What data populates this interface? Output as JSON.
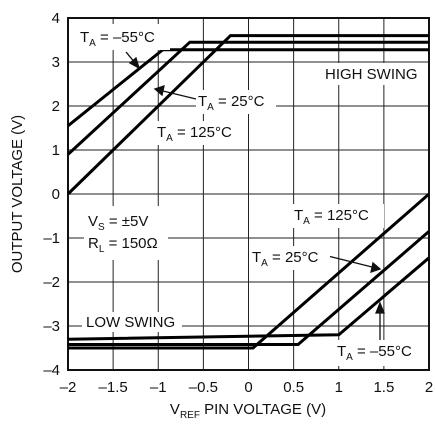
{
  "chart_data": {
    "type": "line",
    "xlabel_main": "V",
    "xlabel_sub": "REF",
    "xlabel_rest": " PIN VOLTAGE (V)",
    "ylabel": "OUTPUT VOLTAGE (V)",
    "xlim": [
      -2,
      2
    ],
    "ylim": [
      -4,
      4
    ],
    "grid": true,
    "x_ticks": [
      -2,
      -1.5,
      -1,
      -0.5,
      0,
      0.5,
      1,
      1.5,
      2
    ],
    "x_tick_labels": [
      "–2",
      "–1.5",
      "–1",
      "–0.5",
      "0",
      "0.5",
      "1",
      "1.5",
      "2"
    ],
    "y_ticks": [
      4,
      3,
      2,
      1,
      0,
      -1,
      -2,
      -3,
      -4
    ],
    "y_tick_labels": [
      "4",
      "3",
      "2",
      "1",
      "0",
      "–1",
      "–2",
      "–3",
      "–4"
    ],
    "series": [
      {
        "group": "high",
        "temp": "–55°C",
        "points": [
          [
            -2,
            1.55
          ],
          [
            -0.95,
            3.28
          ],
          [
            2,
            3.28
          ]
        ]
      },
      {
        "group": "high",
        "temp": "25°C",
        "points": [
          [
            -2,
            0.9
          ],
          [
            -0.65,
            3.45
          ],
          [
            2,
            3.45
          ]
        ]
      },
      {
        "group": "high",
        "temp": "125°C",
        "points": [
          [
            -2,
            0.0
          ],
          [
            -0.2,
            3.6
          ],
          [
            2,
            3.6
          ]
        ]
      },
      {
        "group": "low",
        "temp": "125°C",
        "points": [
          [
            -2,
            -3.5
          ],
          [
            0.05,
            -3.5
          ],
          [
            2,
            0.0
          ]
        ]
      },
      {
        "group": "low",
        "temp": "25°C",
        "points": [
          [
            -2,
            -3.42
          ],
          [
            0.55,
            -3.42
          ],
          [
            2,
            -0.85
          ]
        ]
      },
      {
        "group": "low",
        "temp": "–55°C",
        "points": [
          [
            -2,
            -3.3
          ],
          [
            1.0,
            -3.2
          ],
          [
            2,
            -1.45
          ]
        ]
      }
    ],
    "annotations": {
      "ta_m55_top": {
        "main": "T",
        "sub": "A",
        "rest": " = –55°C"
      },
      "ta_25_top": {
        "main": "T",
        "sub": "A",
        "rest": " = 25°C"
      },
      "ta_125_top": {
        "main": "T",
        "sub": "A",
        "rest": " = 125°C"
      },
      "high_swing": "HIGH SWING",
      "vs": {
        "main": "V",
        "sub": "S",
        "rest": " = ±5V"
      },
      "rl": {
        "main": "R",
        "sub": "L",
        "rest": " = 150Ω"
      },
      "ta_125_bot": {
        "main": "T",
        "sub": "A",
        "rest": " = 125°C"
      },
      "ta_25_bot": {
        "main": "T",
        "sub": "A",
        "rest": " = 25°C"
      },
      "low_swing": "LOW SWING",
      "ta_m55_bot": {
        "main": "T",
        "sub": "A",
        "rest": " = –55°C"
      }
    }
  }
}
